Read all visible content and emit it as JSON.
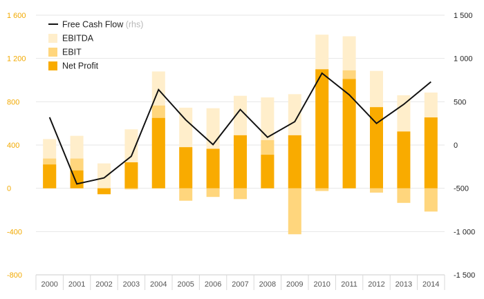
{
  "colors": {
    "ebitda": "#ffeecb",
    "ebit": "#ffd67d",
    "net_profit": "#f9ab00",
    "fcf_line": "#111111",
    "grid": "#e6e6e6",
    "left_axis_text": "#f2a900",
    "right_axis_text": "#222222"
  },
  "chart_data": {
    "type": "bar",
    "categories": [
      "2000",
      "2001",
      "2002",
      "2003",
      "2004",
      "2005",
      "2006",
      "2007",
      "2008",
      "2009",
      "2010",
      "2011",
      "2012",
      "2013",
      "2014"
    ],
    "series": [
      {
        "name": "EBITDA",
        "type": "bar",
        "axis": "left",
        "color_key": "ebitda",
        "values": [
          455,
          485,
          230,
          545,
          1080,
          745,
          740,
          855,
          840,
          870,
          1420,
          1405,
          1085,
          860,
          885
        ]
      },
      {
        "name": "EBIT",
        "type": "bar",
        "axis": "left",
        "color_key": "ebit",
        "values": [
          275,
          275,
          -50,
          -10,
          765,
          -115,
          -80,
          -100,
          445,
          -425,
          -25,
          1090,
          -40,
          -135,
          -215
        ]
      },
      {
        "name": "Net Profit",
        "type": "bar",
        "axis": "left",
        "color_key": "net_profit",
        "values": [
          220,
          165,
          -55,
          240,
          650,
          380,
          365,
          490,
          310,
          490,
          1100,
          1010,
          750,
          525,
          655
        ]
      },
      {
        "name": "Free Cash Flow",
        "legend_note": "(rhs)",
        "type": "line",
        "axis": "right",
        "color_key": "fcf_line",
        "values": [
          320,
          -450,
          -380,
          -130,
          640,
          290,
          5,
          410,
          90,
          270,
          830,
          580,
          250,
          470,
          730
        ]
      }
    ],
    "left_axis": {
      "min": -800,
      "max": 1600,
      "ticks": [
        1600,
        1200,
        800,
        400,
        0,
        -400,
        -800
      ],
      "tick_labels": [
        "1 600",
        "1 200",
        "800",
        "400",
        "0",
        "-400",
        "-800"
      ]
    },
    "right_axis": {
      "min": -1500,
      "max": 1500,
      "ticks": [
        1500,
        1000,
        500,
        0,
        -500,
        -1000,
        -1500
      ],
      "tick_labels": [
        "1 500",
        "1 000",
        "500",
        "0",
        "-500",
        "-1 000",
        "-1 500"
      ]
    },
    "legend": {
      "placement": "top-left",
      "entries": [
        {
          "label": "Free Cash Flow",
          "note": "(rhs)",
          "kind": "line",
          "color_key": "fcf_line"
        },
        {
          "label": "EBITDA",
          "note": "",
          "kind": "box",
          "color_key": "ebitda"
        },
        {
          "label": "EBIT",
          "note": "",
          "kind": "box",
          "color_key": "ebit"
        },
        {
          "label": "Net Profit",
          "note": "",
          "kind": "box",
          "color_key": "net_profit"
        }
      ]
    },
    "grid": true
  }
}
